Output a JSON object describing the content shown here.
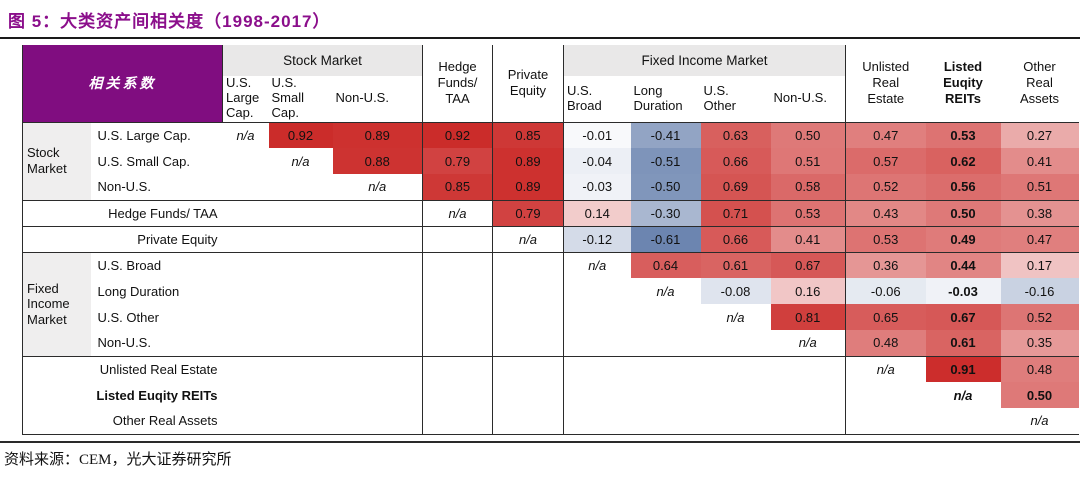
{
  "title": "图 5：大类资产间相关度（1998-2017）",
  "source": "资料来源：CEM，光大证券研究所",
  "colors": {
    "title_purple": "#8B0E8B",
    "header_purple": "#800D80",
    "group_header_bg": "#E9E8E8",
    "row_group_bg": "#EFEEEE",
    "positive_end": "#C81E1C",
    "negative_end": "#2A4E8C"
  },
  "table": {
    "corner_label": "相关系数",
    "column_groups": {
      "stock": "Stock Market",
      "fixed": "Fixed Income Market"
    },
    "columns": [
      {
        "id": "group",
        "width": 68
      },
      {
        "id": "label",
        "width": 132
      },
      {
        "id": "uslc",
        "width": 46,
        "group": "stock",
        "sub": "U.S.\nLarge\nCap."
      },
      {
        "id": "ussc",
        "width": 64,
        "group": "stock",
        "sub": "U.S.\nSmall\nCap."
      },
      {
        "id": "nonus_s",
        "width": 90,
        "group": "stock",
        "sub": "Non-U.S.",
        "vline": true
      },
      {
        "id": "hf",
        "width": 70,
        "head": "Hedge\nFunds/\nTAA",
        "vline": true
      },
      {
        "id": "pe",
        "width": 71,
        "head": "Private\nEquity",
        "vline": true
      },
      {
        "id": "usbroad",
        "width": 67,
        "group": "fixed",
        "sub": "U.S.\nBroad"
      },
      {
        "id": "longdur",
        "width": 70,
        "group": "fixed",
        "sub": "Long\nDuration"
      },
      {
        "id": "usother",
        "width": 70,
        "group": "fixed",
        "sub": "U.S.\nOther"
      },
      {
        "id": "nonus_f",
        "width": 75,
        "group": "fixed",
        "sub": "Non-U.S.",
        "vline": true
      },
      {
        "id": "ure",
        "width": 80,
        "head": "Unlisted\nReal\nEstate"
      },
      {
        "id": "reits",
        "width": 75,
        "head": "Listed\nEuqity\nREITs",
        "bold": true
      },
      {
        "id": "ora",
        "width": 78,
        "head": "Other\nReal\nAssets"
      }
    ],
    "rows": [
      {
        "id": "uslc",
        "group": "Stock\nMarket",
        "group_span": 3,
        "label": "U.S. Large Cap.",
        "values": {
          "uslc": "n/a",
          "ussc": "0.92",
          "nonus_s": "0.89",
          "hf": "0.92",
          "pe": "0.85",
          "usbroad": "-0.01",
          "longdur": "-0.41",
          "usother": "0.63",
          "nonus_f": "0.50",
          "ure": "0.47",
          "reits": "0.53",
          "ora": "0.27"
        }
      },
      {
        "id": "ussc",
        "label": "U.S. Small Cap.",
        "values": {
          "ussc": "n/a",
          "nonus_s": "0.88",
          "hf": "0.79",
          "pe": "0.89",
          "usbroad": "-0.04",
          "longdur": "-0.51",
          "usother": "0.66",
          "nonus_f": "0.51",
          "ure": "0.57",
          "reits": "0.62",
          "ora": "0.41"
        }
      },
      {
        "id": "nonus_s",
        "label": "Non-U.S.",
        "rule_after": true,
        "values": {
          "nonus_s": "n/a",
          "hf": "0.85",
          "pe": "0.89",
          "usbroad": "-0.03",
          "longdur": "-0.50",
          "usother": "0.69",
          "nonus_f": "0.58",
          "ure": "0.52",
          "reits": "0.56",
          "ora": "0.51"
        }
      },
      {
        "id": "hf",
        "wide": true,
        "label": "Hedge Funds/ TAA",
        "rule_after": true,
        "values": {
          "hf": "n/a",
          "pe": "0.79",
          "usbroad": "0.14",
          "longdur": "-0.30",
          "usother": "0.71",
          "nonus_f": "0.53",
          "ure": "0.43",
          "reits": "0.50",
          "ora": "0.38"
        }
      },
      {
        "id": "pe",
        "wide": true,
        "label": "Private Equity",
        "rule_after": true,
        "values": {
          "pe": "n/a",
          "usbroad": "-0.12",
          "longdur": "-0.61",
          "usother": "0.66",
          "nonus_f": "0.41",
          "ure": "0.53",
          "reits": "0.49",
          "ora": "0.47"
        }
      },
      {
        "id": "usbroad",
        "group": "Fixed\nIncome\nMarket",
        "group_span": 4,
        "label": "U.S. Broad",
        "values": {
          "usbroad": "n/a",
          "longdur": "0.64",
          "usother": "0.61",
          "nonus_f": "0.67",
          "ure": "0.36",
          "reits": "0.44",
          "ora": "0.17"
        }
      },
      {
        "id": "longdur",
        "label": "Long Duration",
        "values": {
          "longdur": "n/a",
          "usother": "-0.08",
          "nonus_f": "0.16",
          "ure": "-0.06",
          "reits": "-0.03",
          "ora": "-0.16"
        }
      },
      {
        "id": "usother",
        "label": "U.S. Other",
        "values": {
          "usother": "n/a",
          "nonus_f": "0.81",
          "ure": "0.65",
          "reits": "0.67",
          "ora": "0.52"
        }
      },
      {
        "id": "nonus_f",
        "label": "Non-U.S.",
        "rule_after": true,
        "values": {
          "nonus_f": "n/a",
          "ure": "0.48",
          "reits": "0.61",
          "ora": "0.35"
        }
      },
      {
        "id": "ure",
        "wide": true,
        "label": "Unlisted Real Estate",
        "values": {
          "ure": "n/a",
          "reits": "0.91",
          "ora": "0.48"
        }
      },
      {
        "id": "reits",
        "wide": true,
        "bold": true,
        "label": "Listed Euqity REITs",
        "values": {
          "reits": "n/a",
          "ora": "0.50"
        }
      },
      {
        "id": "ora",
        "wide": true,
        "label": "Other Real Assets",
        "rule_after": true,
        "values": {
          "ora": "n/a"
        }
      }
    ]
  }
}
